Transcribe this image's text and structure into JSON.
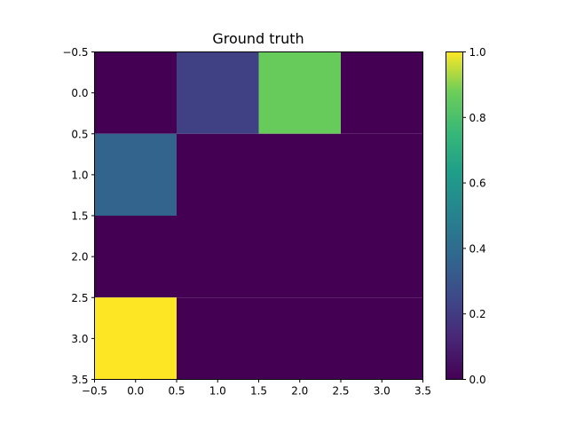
{
  "chart_data": {
    "type": "heatmap",
    "title": "Ground truth",
    "xlabel": "",
    "ylabel": "",
    "colormap": "viridis",
    "grid": false,
    "rows": 4,
    "cols": 4,
    "values": [
      [
        0.0,
        0.22,
        0.86,
        0.0
      ],
      [
        0.36,
        0.0,
        0.0,
        0.0
      ],
      [
        0.0,
        0.0,
        0.0,
        0.0
      ],
      [
        1.0,
        0.0,
        0.0,
        0.0
      ]
    ],
    "xlim": [
      -0.5,
      3.5
    ],
    "ylim": [
      3.5,
      -0.5
    ],
    "x_ticks": [
      "−0.5",
      "0.0",
      "0.5",
      "1.0",
      "1.5",
      "2.0",
      "2.5",
      "3.0",
      "3.5"
    ],
    "y_ticks": [
      "−0.5",
      "0.0",
      "0.5",
      "1.0",
      "1.5",
      "2.0",
      "2.5",
      "3.0",
      "3.5"
    ],
    "colorbar": {
      "range": [
        0.0,
        1.0
      ],
      "ticks": [
        "0.0",
        "0.2",
        "0.4",
        "0.6",
        "0.8",
        "1.0"
      ]
    }
  }
}
